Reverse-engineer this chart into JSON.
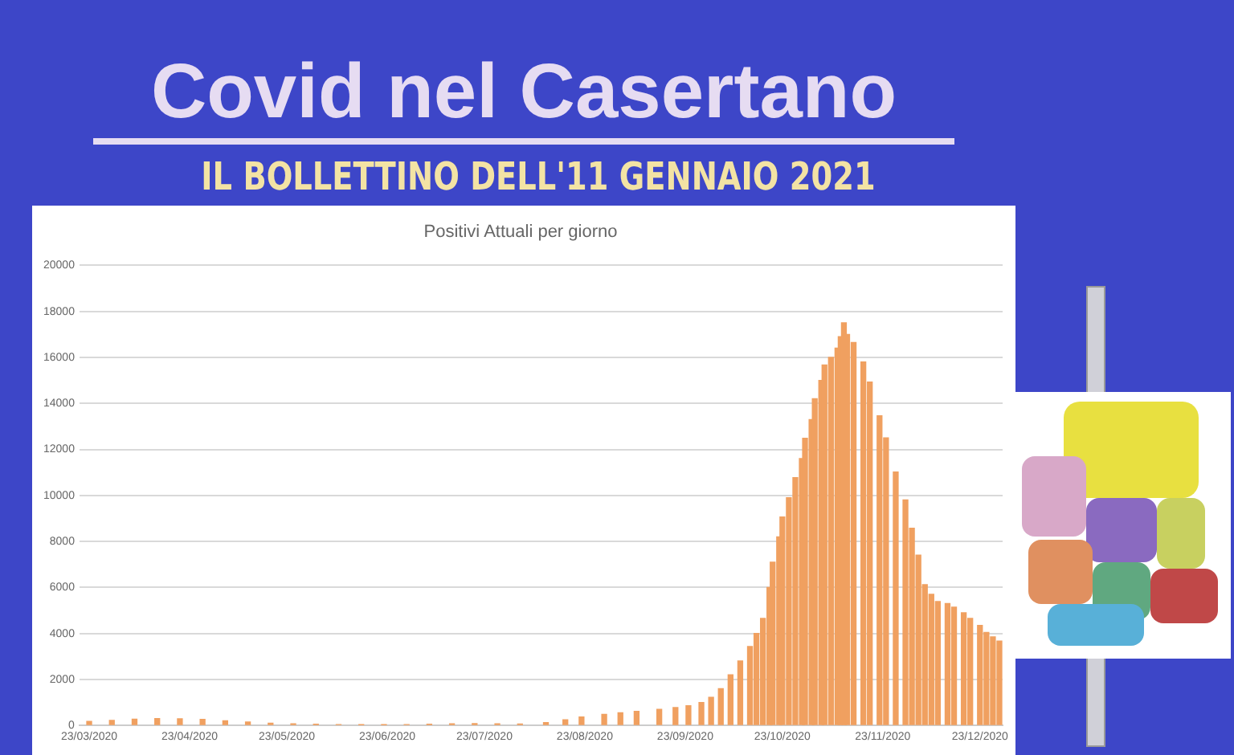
{
  "chart_data": {
    "type": "bar",
    "title": "Covid nel Casertano",
    "subtitle": "IL BOLLETTINO DELL'11 GENNAIO 2021",
    "annotations": [
      "Positivi Attuali per giorno"
    ],
    "x": [
      "2020-03-23",
      "2020-03-30",
      "2020-04-06",
      "2020-04-13",
      "2020-04-20",
      "2020-04-27",
      "2020-05-04",
      "2020-05-11",
      "2020-05-18",
      "2020-05-25",
      "2020-06-01",
      "2020-06-08",
      "2020-06-15",
      "2020-06-22",
      "2020-06-29",
      "2020-07-06",
      "2020-07-13",
      "2020-07-20",
      "2020-07-27",
      "2020-08-03",
      "2020-08-11",
      "2020-08-17",
      "2020-08-22",
      "2020-08-29",
      "2020-09-03",
      "2020-09-08",
      "2020-09-15",
      "2020-09-20",
      "2020-09-24",
      "2020-09-28",
      "2020-10-01",
      "2020-10-04",
      "2020-10-07",
      "2020-10-10",
      "2020-10-13",
      "2020-10-15",
      "2020-10-17",
      "2020-10-19",
      "2020-10-20",
      "2020-10-22",
      "2020-10-23",
      "2020-10-25",
      "2020-10-27",
      "2020-10-29",
      "2020-10-30",
      "2020-11-01",
      "2020-11-02",
      "2020-11-04",
      "2020-11-05",
      "2020-11-07",
      "2020-11-09",
      "2020-11-10",
      "2020-11-11",
      "2020-11-12",
      "2020-11-14",
      "2020-11-17",
      "2020-11-19",
      "2020-11-22",
      "2020-11-24",
      "2020-11-27",
      "2020-11-30",
      "2020-12-02",
      "2020-12-04",
      "2020-12-06",
      "2020-12-08",
      "2020-12-10",
      "2020-12-13",
      "2020-12-15",
      "2020-12-18",
      "2020-12-20",
      "2020-12-23",
      "2020-12-25",
      "2020-12-27",
      "2020-12-29"
    ],
    "values": [
      180,
      220,
      270,
      300,
      290,
      260,
      200,
      150,
      100,
      70,
      50,
      40,
      30,
      30,
      40,
      50,
      70,
      80,
      70,
      60,
      120,
      250,
      370,
      480,
      550,
      610,
      700,
      780,
      860,
      1000,
      1220,
      1600,
      2200,
      2800,
      3430,
      4000,
      4650,
      6000,
      7100,
      8200,
      9060,
      9900,
      10770,
      11600,
      12480,
      13300,
      14200,
      15000,
      15670,
      16000,
      16400,
      16900,
      17500,
      17000,
      16650,
      15800,
      14930,
      13460,
      12500,
      11020,
      9800,
      8570,
      7400,
      6120,
      5700,
      5390,
      5300,
      5140,
      4900,
      4650,
      4350,
      4040,
      3850,
      3670
    ],
    "color": "#f0a060",
    "xlim": [
      "2020-03-20",
      "2020-12-30"
    ],
    "xticks": [
      {
        "value": "2020-03-23",
        "label": "23/03/2020"
      },
      {
        "value": "2020-04-23",
        "label": "23/04/2020"
      },
      {
        "value": "2020-05-23",
        "label": "23/05/2020"
      },
      {
        "value": "2020-06-23",
        "label": "23/06/2020"
      },
      {
        "value": "2020-07-23",
        "label": "23/07/2020"
      },
      {
        "value": "2020-08-23",
        "label": "23/08/2020"
      },
      {
        "value": "2020-09-23",
        "label": "23/09/2020"
      },
      {
        "value": "2020-10-23",
        "label": "23/10/2020"
      },
      {
        "value": "2020-11-23",
        "label": "23/11/2020"
      },
      {
        "value": "2020-12-23",
        "label": "23/12/2020"
      }
    ],
    "ylim": [
      0,
      20000
    ],
    "yticks": [
      0,
      2000,
      4000,
      6000,
      8000,
      10000,
      12000,
      14000,
      16000,
      18000,
      20000
    ],
    "grid": "y"
  }
}
